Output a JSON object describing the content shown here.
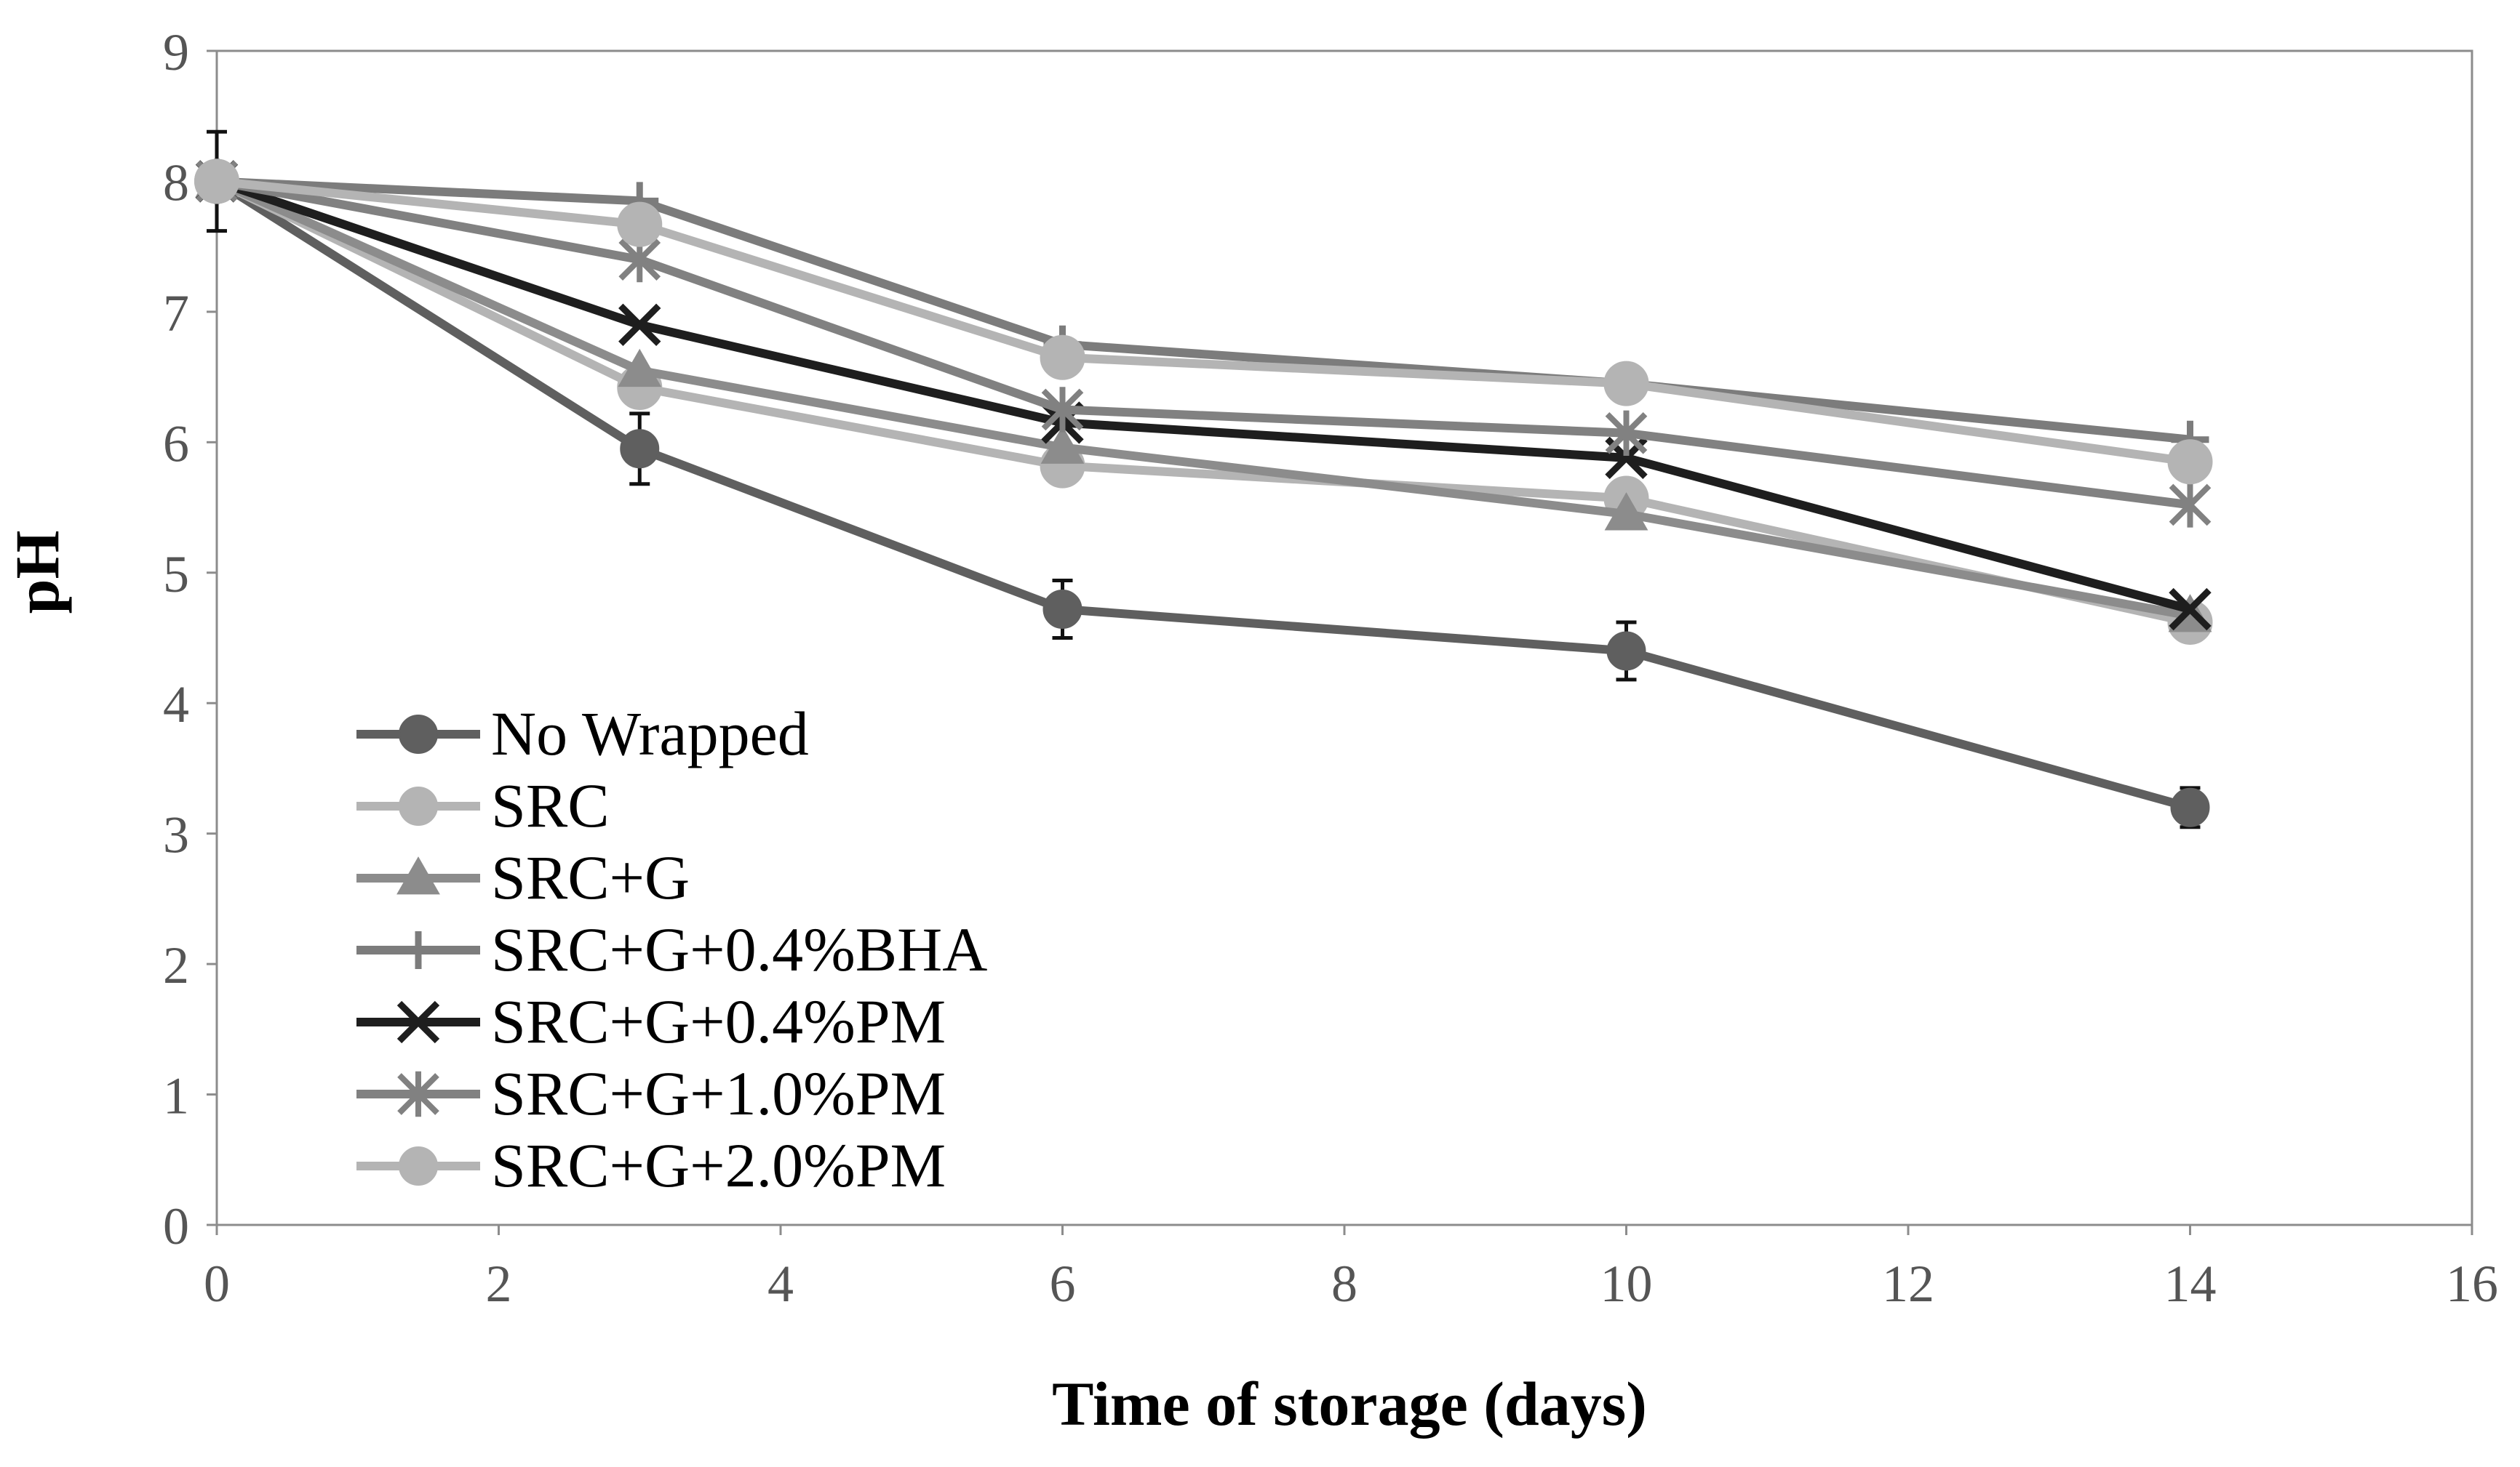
{
  "chart_data": {
    "type": "line",
    "title": "",
    "xlabel": "Time of storage (days)",
    "ylabel": "pH",
    "xlim": [
      0,
      16
    ],
    "ylim": [
      0,
      9
    ],
    "x_ticks": [
      0,
      2,
      4,
      6,
      8,
      10,
      12,
      14,
      16
    ],
    "y_ticks": [
      0,
      1,
      2,
      3,
      4,
      5,
      6,
      7,
      8,
      9
    ],
    "grid": false,
    "legend_position": "bottom-left",
    "x": [
      0,
      3,
      6,
      10,
      14
    ],
    "series": [
      {
        "name": "No Wrapped",
        "values": [
          8.0,
          5.95,
          4.72,
          4.4,
          3.2
        ],
        "errors": [
          0.38,
          0.27,
          0.22,
          0.22,
          0.15
        ],
        "marker": "circle",
        "color": "#5f5f5f"
      },
      {
        "name": "SRC",
        "values": [
          8.0,
          6.42,
          5.82,
          5.57,
          4.62
        ],
        "errors": [
          0.0,
          0.0,
          0.0,
          0.0,
          0.0
        ],
        "marker": "circle",
        "color": "#b4b4b4"
      },
      {
        "name": "SRC+G",
        "values": [
          8.0,
          6.55,
          5.96,
          5.45,
          4.67
        ],
        "errors": [
          0.0,
          0.0,
          0.0,
          0.0,
          0.0
        ],
        "marker": "triangle",
        "color": "#8c8c8c"
      },
      {
        "name": "SRC+G+0.4%BHA",
        "values": [
          8.0,
          7.85,
          6.75,
          6.45,
          6.02
        ],
        "errors": [
          0.0,
          0.0,
          0.0,
          0.0,
          0.0
        ],
        "marker": "plus",
        "color": "#7c7c7c"
      },
      {
        "name": "SRC+G+0.4%PM",
        "values": [
          8.0,
          6.9,
          6.15,
          5.88,
          4.72
        ],
        "errors": [
          0.0,
          0.0,
          0.0,
          0.0,
          0.0
        ],
        "marker": "x",
        "color": "#1e1e1e"
      },
      {
        "name": "SRC+G+1.0%PM",
        "values": [
          8.0,
          7.4,
          6.25,
          6.07,
          5.52
        ],
        "errors": [
          0.0,
          0.0,
          0.0,
          0.0,
          0.0
        ],
        "marker": "star",
        "color": "#818181"
      },
      {
        "name": "SRC+G+2.0%PM",
        "values": [
          8.0,
          7.67,
          6.65,
          6.45,
          5.85
        ],
        "errors": [
          0.0,
          0.0,
          0.0,
          0.0,
          0.0
        ],
        "marker": "circle",
        "color": "#b4b4b4"
      }
    ]
  }
}
